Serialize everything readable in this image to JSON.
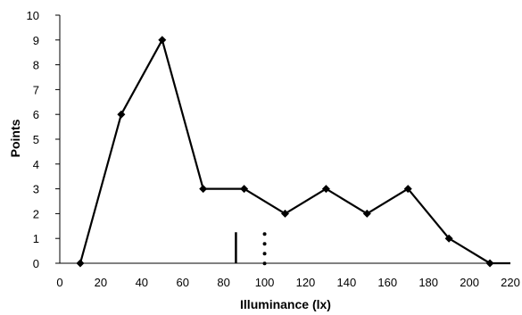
{
  "chart_data": {
    "type": "line",
    "title": "",
    "xlabel": "Illuminance (lx)",
    "ylabel": "Points",
    "xlim": [
      0,
      220
    ],
    "ylim": [
      0,
      10
    ],
    "x_ticks": [
      0,
      20,
      40,
      60,
      80,
      100,
      120,
      140,
      160,
      180,
      200,
      220
    ],
    "y_ticks": [
      0,
      1,
      2,
      3,
      4,
      5,
      6,
      7,
      8,
      9,
      10
    ],
    "grid": false,
    "legend": "none",
    "series": [
      {
        "x": [
          10,
          30,
          50,
          70,
          90,
          110,
          130,
          150,
          170,
          190,
          210
        ],
        "y": [
          0,
          6,
          9,
          3,
          3,
          2,
          3,
          2,
          3,
          1,
          0
        ],
        "color": "#000000",
        "marker": "diamond"
      }
    ],
    "line_extension_to": 220,
    "reference_lines": [
      {
        "x": 86,
        "y_top": 1.25,
        "style": "solid"
      },
      {
        "x": 100,
        "y_top": 1.25,
        "style": "dotted"
      }
    ]
  }
}
